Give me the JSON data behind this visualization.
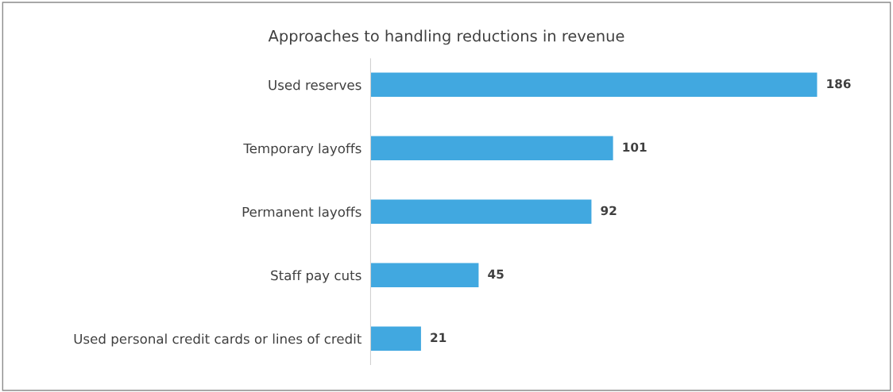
{
  "chart_data": {
    "type": "bar",
    "orientation": "horizontal",
    "title": "Approaches to handling reductions in revenue",
    "categories": [
      "Used reserves",
      "Temporary layoffs",
      "Permanent layoffs",
      "Staff pay cuts",
      "Used personal credit cards or lines of credit"
    ],
    "values": [
      186,
      101,
      92,
      45,
      21
    ],
    "color": "#41a8e0",
    "data_labels": true,
    "grid": false,
    "legend": false
  }
}
